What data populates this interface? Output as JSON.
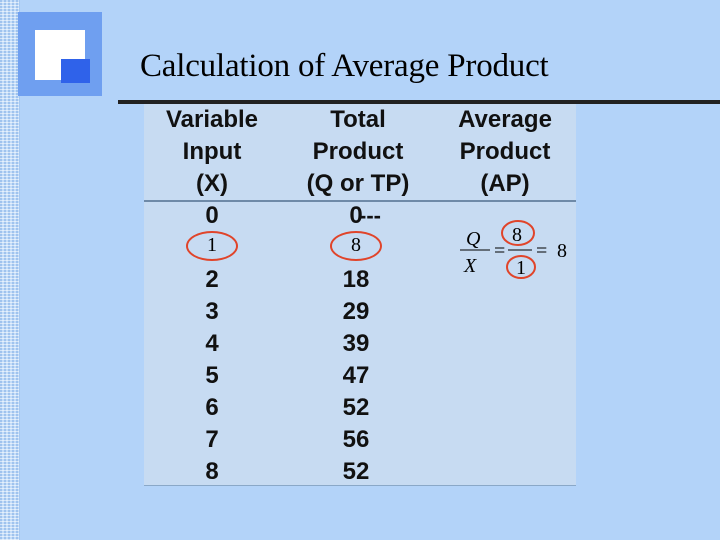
{
  "title": "Calculation of Average Product",
  "table": {
    "headers": [
      [
        "Variable",
        "Input",
        "(X)"
      ],
      [
        "Total",
        "Product",
        "(Q or TP)"
      ],
      [
        "Average",
        "Product",
        "(AP)"
      ]
    ],
    "x_values": [
      "0",
      "1",
      "2",
      "3",
      "4",
      "5",
      "6",
      "7",
      "8"
    ],
    "q_values": [
      "0",
      "8",
      "18",
      "29",
      "39",
      "47",
      "52",
      "56",
      "52"
    ],
    "first_ap": "---"
  },
  "annotations": {
    "x_circled": "1",
    "q_circled": "8",
    "formula": {
      "numerator_symbol": "Q",
      "denominator_symbol": "X",
      "equals": "=",
      "numerator_value": "8",
      "denominator_value": "1",
      "result": "8"
    }
  },
  "colors": {
    "background": "#b3d3f9",
    "table_bg": "#c7dbf2",
    "logo_light": "#6f9ff0",
    "logo_dark": "#2f62ea",
    "circle": "#e0442a"
  }
}
